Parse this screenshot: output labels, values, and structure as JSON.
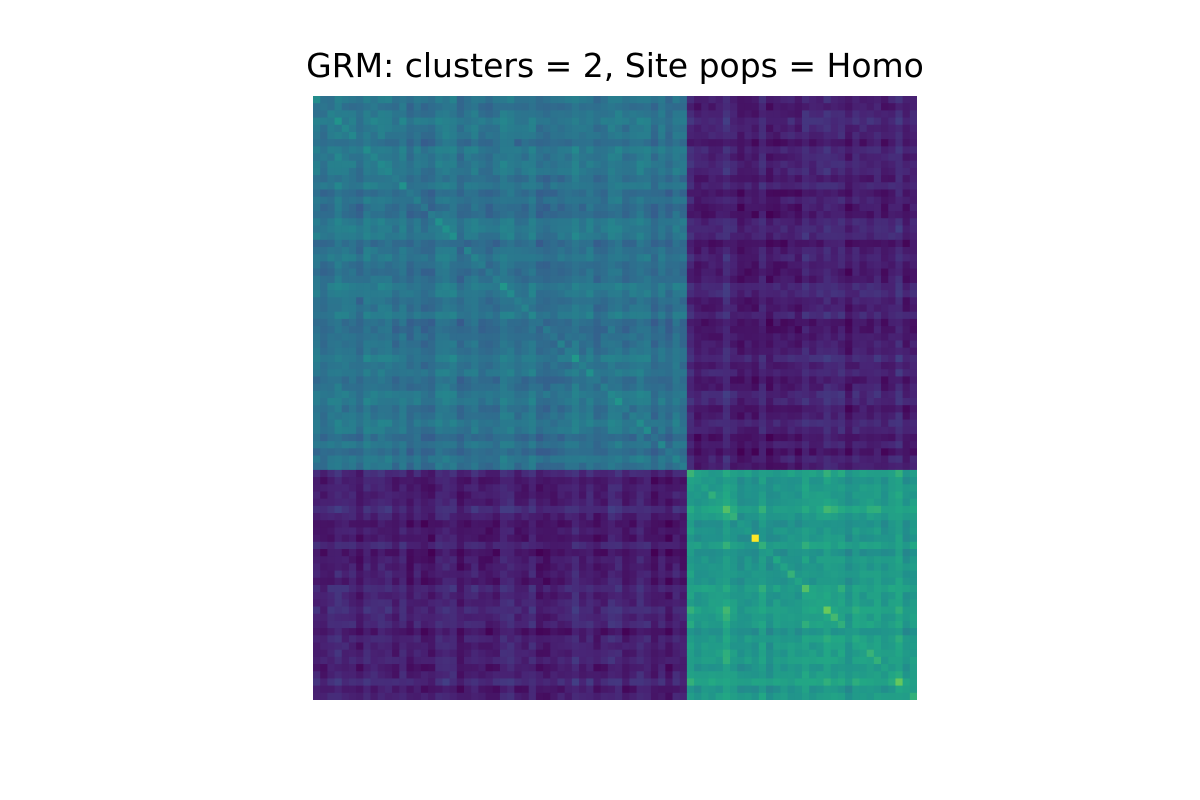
{
  "chart_data": {
    "type": "heatmap",
    "title": "GRM: clusters = 2, Site pops = Homo",
    "colormap": "viridis",
    "color_range": [
      -0.6,
      1.0
    ],
    "cluster_sizes": [
      52,
      32
    ],
    "n_individuals": 84,
    "blocks": [
      {
        "rows": "cluster 1",
        "cols": "cluster 1",
        "mean_value": 0.15
      },
      {
        "rows": "cluster 1",
        "cols": "cluster 2",
        "mean_value": -0.42
      },
      {
        "rows": "cluster 2",
        "cols": "cluster 1",
        "mean_value": -0.42
      },
      {
        "rows": "cluster 2",
        "cols": "cluster 2",
        "mean_value": 0.5
      }
    ],
    "diagonal_boost": 0.12,
    "max_cell": {
      "row": 61,
      "col": 61,
      "value": 1.0
    },
    "axes_visible": false,
    "grid": false
  }
}
